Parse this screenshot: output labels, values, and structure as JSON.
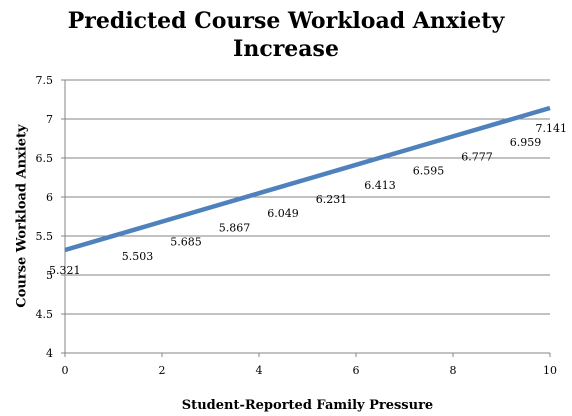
{
  "chart_data": {
    "type": "line",
    "title_lines": [
      "Predicted Course Workload Anxiety",
      "Increase"
    ],
    "xlabel": "Student-Reported Family Pressure",
    "ylabel": "Course Workload Anxiety",
    "xlim": [
      0,
      10
    ],
    "ylim": [
      4,
      7.5
    ],
    "x_ticks": [
      "0",
      "2",
      "4",
      "6",
      "8",
      "10"
    ],
    "y_ticks": [
      "4",
      "4.5",
      "5",
      "5.5",
      "6",
      "6.5",
      "7",
      "7.5"
    ],
    "grid": "horizontal",
    "line_color": "#4F81BD",
    "series": [
      {
        "x": [
          0,
          1,
          2,
          3,
          4,
          5,
          6,
          7,
          8,
          9,
          10
        ],
        "values": [
          5.321,
          5.503,
          5.685,
          5.867,
          6.049,
          6.231,
          6.413,
          6.595,
          6.777,
          6.959,
          7.141
        ],
        "labels": [
          "5.321",
          "5.503",
          "5.685",
          "5.867",
          "6.049",
          "6.231",
          "6.413",
          "6.595",
          "6.777",
          "6.959",
          "7.141"
        ]
      }
    ]
  }
}
